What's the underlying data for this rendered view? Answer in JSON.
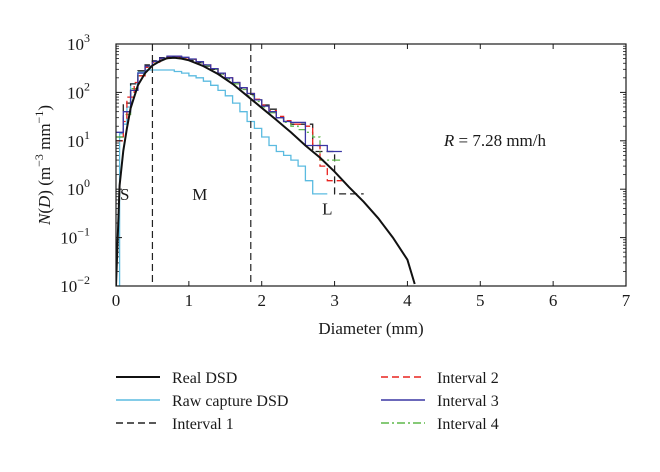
{
  "chart_data": {
    "type": "line",
    "xlabel": "Diameter (mm)",
    "ylabel": {
      "prefix": "N(",
      "var": "D",
      "mid": ") (m",
      "sup1": "−3",
      "mid2": " mm",
      "sup2": "−1",
      "suffix": ")"
    },
    "xlim": [
      0,
      7
    ],
    "ylim": [
      0.01,
      1000
    ],
    "yscale": "log",
    "grid": false,
    "legend_position": "bottom",
    "xticks": [
      "0",
      "1",
      "2",
      "3",
      "4",
      "5",
      "6",
      "7"
    ],
    "yticks": [
      {
        "base": "10",
        "exp": "-2"
      },
      {
        "base": "10",
        "exp": "-1"
      },
      {
        "base": "10",
        "exp": "0"
      },
      {
        "base": "10",
        "exp": "1"
      },
      {
        "base": "10",
        "exp": "2"
      },
      {
        "base": "10",
        "exp": "3"
      }
    ],
    "annotation": {
      "var": "R",
      "text": " = 7.28 mm/h"
    },
    "region_labels": [
      "S",
      "M",
      "L"
    ],
    "region_boundaries_mm": [
      0.5,
      1.85
    ],
    "colors": {
      "real": "#111111",
      "raw": "#5bbbe0",
      "interval1": "#222222",
      "interval2": "#e8231f",
      "interval3": "#3a36a4",
      "interval4": "#5fb84a"
    },
    "series": [
      {
        "name": "Real DSD",
        "style": "solid",
        "points": [
          [
            0.0,
            0.01
          ],
          [
            0.05,
            1.2
          ],
          [
            0.1,
            6.2
          ],
          [
            0.15,
            18
          ],
          [
            0.2,
            47
          ],
          [
            0.3,
            140
          ],
          [
            0.4,
            250
          ],
          [
            0.5,
            360
          ],
          [
            0.6,
            440
          ],
          [
            0.7,
            510
          ],
          [
            0.8,
            520
          ],
          [
            0.9,
            500
          ],
          [
            1.0,
            460
          ],
          [
            1.2,
            350
          ],
          [
            1.4,
            240
          ],
          [
            1.6,
            150
          ],
          [
            1.8,
            85
          ],
          [
            2.0,
            48
          ],
          [
            2.2,
            27
          ],
          [
            2.4,
            15
          ],
          [
            2.6,
            8
          ],
          [
            2.8,
            4.5
          ],
          [
            3.0,
            2.3
          ],
          [
            3.2,
            1.1
          ],
          [
            3.4,
            0.55
          ],
          [
            3.6,
            0.25
          ],
          [
            3.8,
            0.1
          ],
          [
            4.0,
            0.035
          ],
          [
            4.1,
            0.011
          ]
        ]
      },
      {
        "name": "Raw capture DSD",
        "style": "solid",
        "steps": [
          [
            0.0,
            0.01
          ],
          [
            0.05,
            14
          ],
          [
            0.1,
            22
          ],
          [
            0.15,
            50
          ],
          [
            0.2,
            150
          ],
          [
            0.3,
            260
          ],
          [
            0.4,
            290
          ],
          [
            0.5,
            290
          ],
          [
            0.6,
            290
          ],
          [
            0.7,
            290
          ],
          [
            0.8,
            270
          ],
          [
            0.9,
            250
          ],
          [
            1.0,
            220
          ],
          [
            1.1,
            200
          ],
          [
            1.2,
            170
          ],
          [
            1.3,
            140
          ],
          [
            1.4,
            110
          ],
          [
            1.5,
            85
          ],
          [
            1.6,
            60
          ],
          [
            1.7,
            40
          ],
          [
            1.8,
            25
          ],
          [
            1.9,
            18
          ],
          [
            2.0,
            12
          ],
          [
            2.1,
            8
          ],
          [
            2.2,
            6
          ],
          [
            2.3,
            5
          ],
          [
            2.4,
            4
          ],
          [
            2.5,
            3
          ],
          [
            2.6,
            1.5
          ],
          [
            2.7,
            0.8
          ],
          [
            2.8,
            0.8
          ]
        ]
      },
      {
        "name": "Interval 1",
        "style": "dashed",
        "steps": [
          [
            0.0,
            12
          ],
          [
            0.1,
            60
          ],
          [
            0.2,
            150
          ],
          [
            0.3,
            280
          ],
          [
            0.4,
            370
          ],
          [
            0.5,
            450
          ],
          [
            0.6,
            520
          ],
          [
            0.7,
            540
          ],
          [
            0.8,
            530
          ],
          [
            0.9,
            500
          ],
          [
            1.0,
            460
          ],
          [
            1.1,
            410
          ],
          [
            1.2,
            350
          ],
          [
            1.3,
            300
          ],
          [
            1.4,
            240
          ],
          [
            1.5,
            190
          ],
          [
            1.6,
            150
          ],
          [
            1.7,
            120
          ],
          [
            1.8,
            90
          ],
          [
            1.9,
            70
          ],
          [
            2.0,
            55
          ],
          [
            2.1,
            45
          ],
          [
            2.2,
            30
          ],
          [
            2.3,
            25
          ],
          [
            2.4,
            22
          ],
          [
            2.5,
            22
          ],
          [
            2.6,
            22
          ],
          [
            2.7,
            6
          ],
          [
            2.8,
            6
          ],
          [
            2.9,
            6
          ],
          [
            3.0,
            0.8
          ],
          [
            3.3,
            0.8
          ]
        ]
      },
      {
        "name": "Interval 2",
        "style": "dashed",
        "steps": [
          [
            0.0,
            10
          ],
          [
            0.1,
            25
          ],
          [
            0.15,
            80
          ],
          [
            0.25,
            160
          ],
          [
            0.3,
            220
          ],
          [
            0.4,
            330
          ],
          [
            0.5,
            420
          ],
          [
            0.6,
            500
          ],
          [
            0.7,
            540
          ],
          [
            0.8,
            550
          ],
          [
            0.9,
            520
          ],
          [
            1.0,
            480
          ],
          [
            1.1,
            430
          ],
          [
            1.2,
            370
          ],
          [
            1.3,
            310
          ],
          [
            1.4,
            250
          ],
          [
            1.5,
            200
          ],
          [
            1.6,
            160
          ],
          [
            1.7,
            125
          ],
          [
            1.8,
            95
          ],
          [
            1.9,
            72
          ],
          [
            2.0,
            55
          ],
          [
            2.1,
            42
          ],
          [
            2.2,
            32
          ],
          [
            2.3,
            26
          ],
          [
            2.4,
            22
          ],
          [
            2.5,
            22
          ],
          [
            2.6,
            20
          ],
          [
            2.7,
            8
          ],
          [
            2.8,
            3
          ],
          [
            2.9,
            1.5
          ],
          [
            3.0,
            1.5
          ]
        ]
      },
      {
        "name": "Interval 3",
        "style": "solid",
        "steps": [
          [
            0.0,
            15
          ],
          [
            0.1,
            40
          ],
          [
            0.2,
            110
          ],
          [
            0.3,
            250
          ],
          [
            0.4,
            350
          ],
          [
            0.5,
            440
          ],
          [
            0.6,
            510
          ],
          [
            0.7,
            560
          ],
          [
            0.8,
            560
          ],
          [
            0.9,
            530
          ],
          [
            1.0,
            490
          ],
          [
            1.1,
            430
          ],
          [
            1.2,
            370
          ],
          [
            1.3,
            310
          ],
          [
            1.4,
            250
          ],
          [
            1.5,
            200
          ],
          [
            1.6,
            160
          ],
          [
            1.7,
            125
          ],
          [
            1.8,
            95
          ],
          [
            1.9,
            70
          ],
          [
            2.0,
            52
          ],
          [
            2.1,
            40
          ],
          [
            2.2,
            30
          ],
          [
            2.3,
            25
          ],
          [
            2.4,
            24
          ],
          [
            2.5,
            24
          ],
          [
            2.6,
            8
          ],
          [
            2.7,
            8
          ],
          [
            2.8,
            8
          ],
          [
            2.9,
            6
          ],
          [
            3.0,
            6
          ]
        ]
      },
      {
        "name": "Interval 4",
        "style": "dashdot",
        "steps": [
          [
            0.0,
            12
          ],
          [
            0.1,
            35
          ],
          [
            0.2,
            120
          ],
          [
            0.3,
            220
          ],
          [
            0.4,
            340
          ],
          [
            0.5,
            430
          ],
          [
            0.6,
            500
          ],
          [
            0.7,
            540
          ],
          [
            0.8,
            550
          ],
          [
            0.9,
            520
          ],
          [
            1.0,
            480
          ],
          [
            1.1,
            420
          ],
          [
            1.2,
            360
          ],
          [
            1.3,
            300
          ],
          [
            1.4,
            240
          ],
          [
            1.5,
            190
          ],
          [
            1.6,
            150
          ],
          [
            1.7,
            115
          ],
          [
            1.8,
            85
          ],
          [
            1.9,
            65
          ],
          [
            2.0,
            50
          ],
          [
            2.1,
            38
          ],
          [
            2.2,
            30
          ],
          [
            2.3,
            24
          ],
          [
            2.4,
            20
          ],
          [
            2.5,
            17
          ],
          [
            2.6,
            15
          ],
          [
            2.7,
            12
          ],
          [
            2.8,
            4
          ],
          [
            2.9,
            4
          ],
          [
            3.0,
            4
          ]
        ]
      }
    ]
  },
  "legend": {
    "left": [
      "Real DSD",
      "Raw capture DSD",
      "Interval 1"
    ],
    "right": [
      "Interval 2",
      "Interval 3",
      "Interval 4"
    ]
  }
}
